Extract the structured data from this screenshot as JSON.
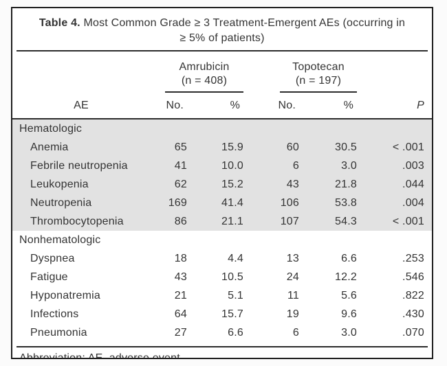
{
  "title": {
    "label": "Table 4.",
    "line1": "Most Common Grade ≥ 3 Treatment-Emergent AEs (occurring in",
    "line2": "≥ 5% of patients)"
  },
  "groups": [
    {
      "name": "Amrubicin",
      "n": "(n = 408)"
    },
    {
      "name": "Topotecan",
      "n": "(n = 197)"
    }
  ],
  "columns": {
    "ae": "AE",
    "no": "No.",
    "pct": "%",
    "p": "P"
  },
  "sections": [
    {
      "name": "Hematologic",
      "shaded": true,
      "rows": [
        {
          "ae": "Anemia",
          "amr_no": "65",
          "amr_pct": "15.9",
          "top_no": "60",
          "top_pct": "30.5",
          "p": "< .001"
        },
        {
          "ae": "Febrile neutropenia",
          "amr_no": "41",
          "amr_pct": "10.0",
          "top_no": "6",
          "top_pct": "3.0",
          "p": ".003"
        },
        {
          "ae": "Leukopenia",
          "amr_no": "62",
          "amr_pct": "15.2",
          "top_no": "43",
          "top_pct": "21.8",
          "p": ".044"
        },
        {
          "ae": "Neutropenia",
          "amr_no": "169",
          "amr_pct": "41.4",
          "top_no": "106",
          "top_pct": "53.8",
          "p": ".004"
        },
        {
          "ae": "Thrombocytopenia",
          "amr_no": "86",
          "amr_pct": "21.1",
          "top_no": "107",
          "top_pct": "54.3",
          "p": "< .001"
        }
      ]
    },
    {
      "name": "Nonhematologic",
      "shaded": false,
      "rows": [
        {
          "ae": "Dyspnea",
          "amr_no": "18",
          "amr_pct": "4.4",
          "top_no": "13",
          "top_pct": "6.6",
          "p": ".253"
        },
        {
          "ae": "Fatigue",
          "amr_no": "43",
          "amr_pct": "10.5",
          "top_no": "24",
          "top_pct": "12.2",
          "p": ".546"
        },
        {
          "ae": "Hyponatremia",
          "amr_no": "21",
          "amr_pct": "5.1",
          "top_no": "11",
          "top_pct": "5.6",
          "p": ".822"
        },
        {
          "ae": "Infections",
          "amr_no": "64",
          "amr_pct": "15.7",
          "top_no": "19",
          "top_pct": "9.6",
          "p": ".430"
        },
        {
          "ae": "Pneumonia",
          "amr_no": "27",
          "amr_pct": "6.6",
          "top_no": "6",
          "top_pct": "3.0",
          "p": ".070"
        }
      ]
    }
  ],
  "footnote": "Abbreviation: AE, adverse event.",
  "colors": {
    "shading": "#e2e2e2",
    "rule": "#2b2b2b",
    "text": "#333333",
    "frame_border": "#1d1d1d",
    "background": "#ffffff"
  }
}
